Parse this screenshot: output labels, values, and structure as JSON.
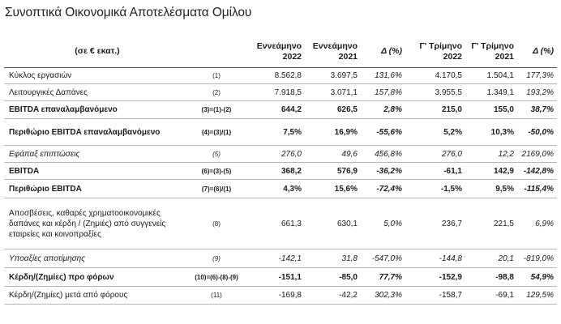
{
  "title": "Συνοπτικά Οικονομικά Αποτελέσματα Ομίλου",
  "header": {
    "unit": "(σε € εκατ.)",
    "cols": [
      [
        "Εννεάμηνο",
        "2022"
      ],
      [
        "Εννεάμηνο",
        "2021"
      ],
      [
        "Δ (%)",
        ""
      ],
      [
        "Γ' Τρίμηνο",
        "2022"
      ],
      [
        "Γ' Τρίμηνο",
        "2021"
      ],
      [
        "Δ (%)",
        ""
      ]
    ]
  },
  "rows": [
    {
      "label": "Κύκλος εργασιών",
      "ref": "(1)",
      "v": [
        "8.562,8",
        "3.697,5",
        "131,6%",
        "4.170,5",
        "1.504,1",
        "177,3%"
      ],
      "style": "normal"
    },
    {
      "label": "Λειτουργικές Δαπάνες",
      "ref": "(2)",
      "v": [
        "7.918,5",
        "3.071,1",
        "157,8%",
        "3.955,5",
        "1.349,1",
        "193,2%"
      ],
      "style": "normal"
    },
    {
      "label": "EBITDA επαναλαμβανόμενο",
      "ref": "(3)=(1)-(2)",
      "v": [
        "644,2",
        "626,5",
        "2,8%",
        "215,0",
        "155,0",
        "38,7%"
      ],
      "style": "bold"
    },
    {
      "label": "Περιθώριο EBITDA επαναλαμβανόμενο",
      "ref": "(4)=(3)/(1)",
      "v": [
        "7,5%",
        "16,9%",
        "-55,6%",
        "5,2%",
        "10,3%",
        "-50,0%"
      ],
      "style": "bold"
    },
    {
      "label": "Εφάπαξ επιπτώσεις",
      "ref": "(5)",
      "v": [
        "276,0",
        "49,6",
        "456,8%",
        "276,0",
        "12,2",
        "2169,0%"
      ],
      "style": "italic"
    },
    {
      "label": "EBITDA",
      "ref": "(6)=(3)-(5)",
      "v": [
        "368,2",
        "576,9",
        "-36,2%",
        "-61,1",
        "142,9",
        "-142,8%"
      ],
      "style": "bold"
    },
    {
      "label": "Περιθώριο EBITDA",
      "ref": "(7)=(6)/(1)",
      "v": [
        "4,3%",
        "15,6%",
        "-72,4%",
        "-1,5%",
        "9,5%",
        "-115,4%"
      ],
      "style": "bold"
    },
    {
      "label": "Αποσβέσεις, καθαρές χρηματοοικονομικές δαπάνες και κέρδη / (Ζημιές) από συγγενείς εταιρείες και κοινοπραξίες",
      "ref": "(8)",
      "v": [
        "661,3",
        "630,1",
        "5,0%",
        "236,7",
        "221,5",
        "6,9%"
      ],
      "style": "normal"
    },
    {
      "label": "Υποαξίες αποτίμησης",
      "ref": "(9)",
      "v": [
        "-142,1",
        "31,8",
        "-547,0%",
        "-144,8",
        "20,1",
        "-819,0%"
      ],
      "style": "italic"
    },
    {
      "label": "Κέρδη/(Ζημίες) προ φόρων",
      "ref": "(10)=(6)-(8)-(9)",
      "v": [
        "-151,1",
        "-85,0",
        "77,7%",
        "-152,9",
        "-98,8",
        "54,9%"
      ],
      "style": "bold"
    },
    {
      "label": "Κέρδη/(Ζημίες) μετά από φόρους",
      "ref": "(11)",
      "v": [
        "-169,8",
        "-42,2",
        "302,3%",
        "-158,7",
        "-69,1",
        "129,5%"
      ],
      "style": "normal"
    }
  ]
}
